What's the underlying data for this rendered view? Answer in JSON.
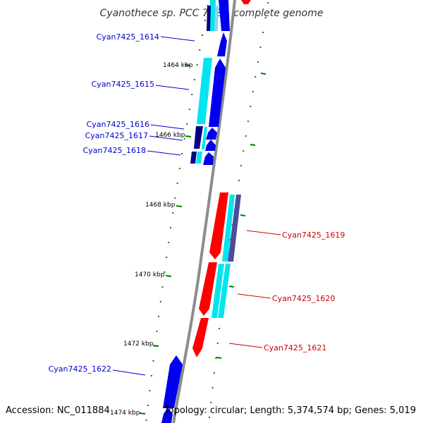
{
  "title": "Cyanothece sp. PCC 7425, complete genome",
  "accession": "Accession: NC_011884",
  "topology": "Topology: circular; Length: 5,374,574 bp; Genes: 5,019",
  "ticks": [
    "1464 kbp",
    "1466 kbp",
    "1468 kbp",
    "1470 kbp",
    "1472 kbp",
    "1474 kbp"
  ],
  "genes": [
    {
      "label": "Cyan7425_1614",
      "strand": "forward"
    },
    {
      "label": "Cyan7425_1615",
      "strand": "forward"
    },
    {
      "label": "Cyan7425_1616",
      "strand": "forward"
    },
    {
      "label": "Cyan7425_1617",
      "strand": "forward"
    },
    {
      "label": "Cyan7425_1618",
      "strand": "forward"
    },
    {
      "label": "Cyan7425_1619",
      "strand": "reverse"
    },
    {
      "label": "Cyan7425_1620",
      "strand": "reverse"
    },
    {
      "label": "Cyan7425_1621",
      "strand": "reverse"
    },
    {
      "label": "Cyan7425_1622",
      "strand": "forward"
    }
  ],
  "colors": {
    "backbone": "#8c8c8c",
    "forward_cds": "#0000ee",
    "forward_gene": "#000088",
    "reverse_cds": "#ff0000",
    "rna": "#00e5ee",
    "tick": "#008000",
    "forward_label": "#0000cc",
    "reverse_label": "#cc0000"
  }
}
